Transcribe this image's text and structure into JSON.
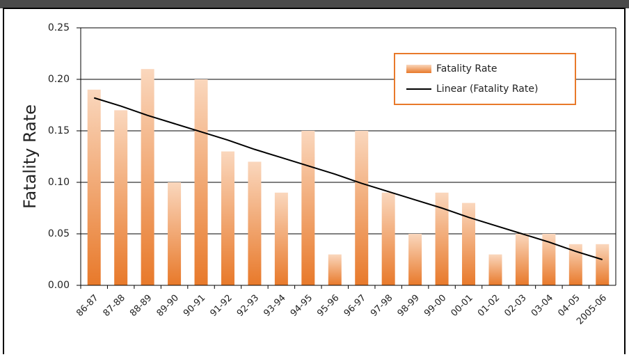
{
  "chart_data": {
    "type": "bar",
    "y_axis_label": "Fatality Rate",
    "categories": [
      "86-87",
      "87-88",
      "88-89",
      "89-90",
      "90-91",
      "91-92",
      "92-93",
      "93-94",
      "94-95",
      "95-96",
      "96-97",
      "97-98",
      "98-99",
      "99-00",
      "00-01",
      "01-02",
      "02-03",
      "03-04",
      "04-05",
      "2005-06"
    ],
    "series": [
      {
        "name": "Fatality Rate",
        "type": "bar",
        "color": "#e8792a",
        "values": [
          0.19,
          0.17,
          0.21,
          0.1,
          0.2,
          0.13,
          0.12,
          0.09,
          0.15,
          0.03,
          0.15,
          0.09,
          0.05,
          0.09,
          0.08,
          0.03,
          0.05,
          0.05,
          0.04,
          0.04
        ]
      },
      {
        "name": "Linear (Fatality Rate)",
        "type": "line",
        "color": "#000000",
        "values": [
          0.182,
          0.174,
          0.165,
          0.157,
          0.149,
          0.141,
          0.132,
          0.124,
          0.116,
          0.108,
          0.099,
          0.091,
          0.083,
          0.075,
          0.066,
          0.058,
          0.05,
          0.042,
          0.033,
          0.025
        ]
      }
    ],
    "ylim": [
      0,
      0.25
    ],
    "yticks": [
      {
        "value": 0,
        "label": "0.00"
      },
      {
        "value": 0.05,
        "label": "0.05"
      },
      {
        "value": 0.1,
        "label": "0.10"
      },
      {
        "value": 0.15,
        "label": "0.15"
      },
      {
        "value": 0.2,
        "label": "0.20"
      },
      {
        "value": 0.25,
        "label": "0.25"
      }
    ],
    "grid": true,
    "legend": "top-right"
  }
}
